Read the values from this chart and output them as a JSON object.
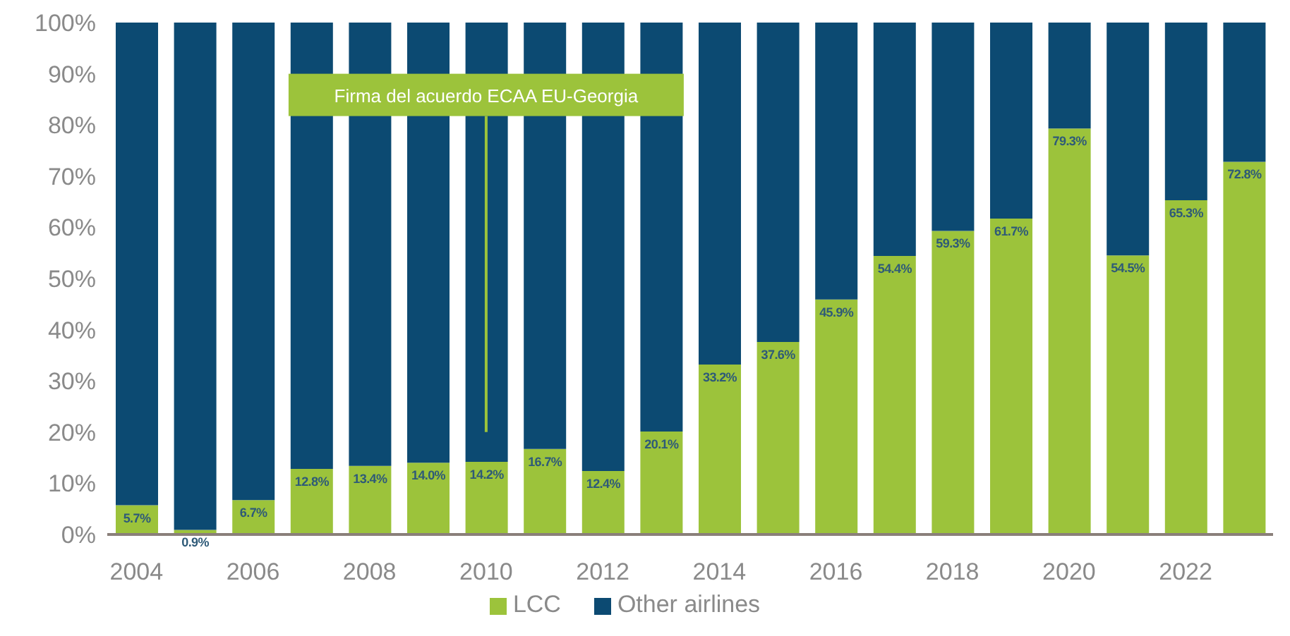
{
  "chart_data": {
    "type": "bar",
    "stacked": true,
    "categories": [
      "2004",
      null,
      "2006",
      null,
      "2008",
      null,
      "2010",
      null,
      "2012",
      null,
      "2014",
      null,
      "2016",
      null,
      "2018",
      null,
      "2020",
      null,
      "2022",
      null
    ],
    "series": [
      {
        "name": "LCC",
        "color": "#9cc33b",
        "values": [
          5.7,
          0.9,
          6.7,
          12.8,
          13.4,
          14.0,
          14.2,
          16.7,
          12.4,
          20.1,
          33.2,
          37.6,
          45.9,
          54.4,
          59.3,
          61.7,
          79.3,
          54.5,
          65.3,
          72.8
        ],
        "value_labels": [
          "5.7%",
          "0.9%",
          "6.7%",
          "12.8%",
          "13.4%",
          "14.0%",
          "14.2%",
          "16.7%",
          "12.4%",
          "20.1%",
          "33.2%",
          "37.6%",
          "45.9%",
          "54.4%",
          "59.3%",
          "61.7%",
          "79.3%",
          "54.5%",
          "65.3%",
          "72.8%"
        ]
      },
      {
        "name": "Other airlines",
        "color": "#0c4a72",
        "values": [
          94.3,
          99.1,
          93.3,
          87.2,
          86.6,
          86.0,
          85.8,
          83.3,
          87.6,
          79.9,
          66.8,
          62.4,
          54.1,
          45.6,
          40.7,
          38.3,
          20.7,
          45.5,
          34.7,
          27.2
        ]
      }
    ],
    "ylim": [
      0,
      100
    ],
    "yticks": [
      {
        "value": 0,
        "label": "0%"
      },
      {
        "value": 10,
        "label": "10%"
      },
      {
        "value": 20,
        "label": "20%"
      },
      {
        "value": 30,
        "label": "30%"
      },
      {
        "value": 40,
        "label": "40%"
      },
      {
        "value": 50,
        "label": "50%"
      },
      {
        "value": 60,
        "label": "60%"
      },
      {
        "value": 70,
        "label": "70%"
      },
      {
        "value": 80,
        "label": "80%"
      },
      {
        "value": 90,
        "label": "90%"
      },
      {
        "value": 100,
        "label": "100%"
      }
    ],
    "grid": false,
    "legend": "bottom",
    "ref_lines": [
      {
        "axis": "x",
        "value": "2010",
        "label": "Firma del acuerdo ECAA EU-Georgia",
        "color": "#9cc33b"
      }
    ]
  }
}
